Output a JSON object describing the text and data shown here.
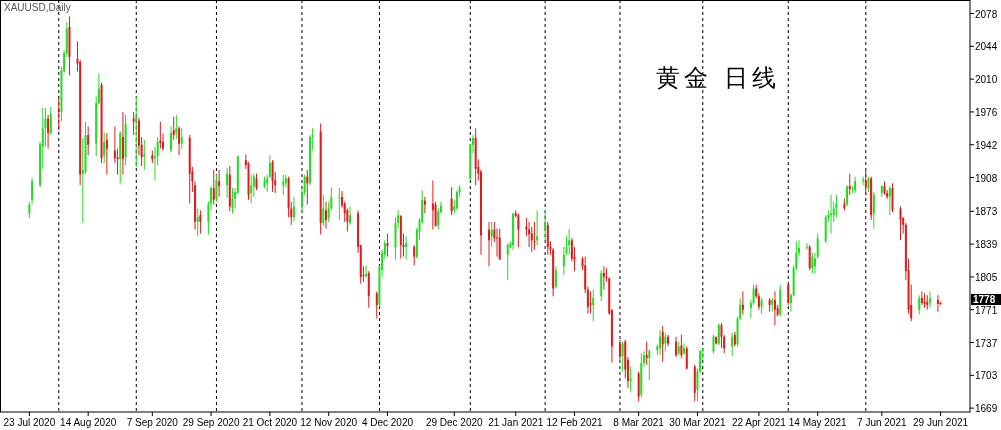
{
  "chart_data": {
    "type": "candlestick",
    "title": "黄金 日线",
    "subtitle": "XAUUSD,Daily",
    "x": [
      "2020-07-23",
      "2020-07-24",
      "2020-07-27",
      "2020-07-28",
      "2020-07-29",
      "2020-07-30",
      "2020-07-31",
      "2020-08-03",
      "2020-08-04",
      "2020-08-05",
      "2020-08-06",
      "2020-08-07",
      "2020-08-10",
      "2020-08-11",
      "2020-08-12",
      "2020-08-13",
      "2020-08-14",
      "2020-08-17",
      "2020-08-18",
      "2020-08-19",
      "2020-08-20",
      "2020-08-21",
      "2020-08-24",
      "2020-08-25",
      "2020-08-26",
      "2020-08-27",
      "2020-08-28",
      "2020-08-31",
      "2020-09-01",
      "2020-09-02",
      "2020-09-03",
      "2020-09-04",
      "2020-09-07",
      "2020-09-08",
      "2020-09-09",
      "2020-09-10",
      "2020-09-11",
      "2020-09-14",
      "2020-09-15",
      "2020-09-16",
      "2020-09-17",
      "2020-09-18",
      "2020-09-21",
      "2020-09-22",
      "2020-09-23",
      "2020-09-24",
      "2020-09-25",
      "2020-09-28",
      "2020-09-29",
      "2020-09-30",
      "2020-10-01",
      "2020-10-02",
      "2020-10-05",
      "2020-10-06",
      "2020-10-07",
      "2020-10-08",
      "2020-10-09",
      "2020-10-12",
      "2020-10-13",
      "2020-10-14",
      "2020-10-15",
      "2020-10-16",
      "2020-10-19",
      "2020-10-20",
      "2020-10-21",
      "2020-10-22",
      "2020-10-23",
      "2020-10-26",
      "2020-10-27",
      "2020-10-28",
      "2020-10-29",
      "2020-10-30",
      "2020-11-02",
      "2020-11-03",
      "2020-11-04",
      "2020-11-05",
      "2020-11-06",
      "2020-11-09",
      "2020-11-10",
      "2020-11-11",
      "2020-11-12",
      "2020-11-13",
      "2020-11-16",
      "2020-11-17",
      "2020-11-18",
      "2020-11-19",
      "2020-11-20",
      "2020-11-23",
      "2020-11-24",
      "2020-11-25",
      "2020-11-26",
      "2020-11-27",
      "2020-11-30",
      "2020-12-01",
      "2020-12-02",
      "2020-12-03",
      "2020-12-04",
      "2020-12-07",
      "2020-12-08",
      "2020-12-09",
      "2020-12-10",
      "2020-12-11",
      "2020-12-14",
      "2020-12-15",
      "2020-12-16",
      "2020-12-17",
      "2020-12-18",
      "2020-12-21",
      "2020-12-22",
      "2020-12-23",
      "2020-12-24",
      "2020-12-28",
      "2020-12-29",
      "2020-12-30",
      "2020-12-31",
      "2021-01-04",
      "2021-01-05",
      "2021-01-06",
      "2021-01-07",
      "2021-01-08",
      "2021-01-11",
      "2021-01-12",
      "2021-01-13",
      "2021-01-14",
      "2021-01-15",
      "2021-01-18",
      "2021-01-19",
      "2021-01-20",
      "2021-01-21",
      "2021-01-22",
      "2021-01-25",
      "2021-01-26",
      "2021-01-27",
      "2021-01-28",
      "2021-01-29",
      "2021-02-01",
      "2021-02-02",
      "2021-02-03",
      "2021-02-04",
      "2021-02-05",
      "2021-02-08",
      "2021-02-09",
      "2021-02-10",
      "2021-02-11",
      "2021-02-12",
      "2021-02-15",
      "2021-02-16",
      "2021-02-17",
      "2021-02-18",
      "2021-02-19",
      "2021-02-22",
      "2021-02-23",
      "2021-02-24",
      "2021-02-25",
      "2021-02-26",
      "2021-03-01",
      "2021-03-02",
      "2021-03-03",
      "2021-03-04",
      "2021-03-05",
      "2021-03-08",
      "2021-03-09",
      "2021-03-10",
      "2021-03-11",
      "2021-03-12",
      "2021-03-15",
      "2021-03-16",
      "2021-03-17",
      "2021-03-18",
      "2021-03-19",
      "2021-03-22",
      "2021-03-23",
      "2021-03-24",
      "2021-03-25",
      "2021-03-26",
      "2021-03-29",
      "2021-03-30",
      "2021-03-31",
      "2021-04-01",
      "2021-04-05",
      "2021-04-06",
      "2021-04-07",
      "2021-04-08",
      "2021-04-09",
      "2021-04-12",
      "2021-04-13",
      "2021-04-14",
      "2021-04-15",
      "2021-04-16",
      "2021-04-19",
      "2021-04-20",
      "2021-04-21",
      "2021-04-22",
      "2021-04-23",
      "2021-04-26",
      "2021-04-27",
      "2021-04-28",
      "2021-04-29",
      "2021-04-30",
      "2021-05-03",
      "2021-05-04",
      "2021-05-05",
      "2021-05-06",
      "2021-05-07",
      "2021-05-10",
      "2021-05-11",
      "2021-05-12",
      "2021-05-13",
      "2021-05-14",
      "2021-05-17",
      "2021-05-18",
      "2021-05-19",
      "2021-05-20",
      "2021-05-21",
      "2021-05-24",
      "2021-05-25",
      "2021-05-26",
      "2021-05-27",
      "2021-05-28",
      "2021-05-31",
      "2021-06-01",
      "2021-06-02",
      "2021-06-03",
      "2021-06-04",
      "2021-06-07",
      "2021-06-08",
      "2021-06-09",
      "2021-06-10",
      "2021-06-11",
      "2021-06-14",
      "2021-06-15",
      "2021-06-16",
      "2021-06-17",
      "2021-06-18",
      "2021-06-21",
      "2021-06-22",
      "2021-06-23",
      "2021-06-24",
      "2021-06-25",
      "2021-06-28",
      "2021-06-29"
    ],
    "ohlc": [
      [
        1871,
        1883,
        1866,
        1880
      ],
      [
        1885,
        1908,
        1880,
        1904
      ],
      [
        1900,
        1945,
        1898,
        1943
      ],
      [
        1940,
        1980,
        1917,
        1959
      ],
      [
        1959,
        1980,
        1940,
        1969
      ],
      [
        1969,
        1973,
        1938,
        1954
      ],
      [
        1954,
        1981,
        1952,
        1974
      ],
      [
        1978,
        1990,
        1957,
        1976
      ],
      [
        1976,
        2023,
        1966,
        2019
      ],
      [
        2018,
        2040,
        2017,
        2037
      ],
      [
        2037,
        2069,
        2033,
        2062
      ],
      [
        2064,
        2075,
        2014,
        2033
      ],
      [
        2031,
        2049,
        2018,
        2026
      ],
      [
        2028,
        2030,
        1900,
        1911
      ],
      [
        1912,
        1949,
        1861,
        1916
      ],
      [
        1914,
        1966,
        1912,
        1952
      ],
      [
        1952,
        1961,
        1931,
        1942
      ],
      [
        1943,
        1992,
        1930,
        1985
      ],
      [
        1985,
        2016,
        1984,
        2000
      ],
      [
        2004,
        2006,
        1923,
        1928
      ],
      [
        1931,
        1955,
        1923,
        1945
      ],
      [
        1947,
        1954,
        1911,
        1938
      ],
      [
        1936,
        1961,
        1923,
        1928
      ],
      [
        1929,
        1938,
        1911,
        1927
      ],
      [
        1927,
        1956,
        1902,
        1954
      ],
      [
        1950,
        1976,
        1911,
        1927
      ],
      [
        1929,
        1973,
        1921,
        1964
      ],
      [
        1969,
        1976,
        1952,
        1966
      ],
      [
        1967,
        1992,
        1919,
        1971
      ],
      [
        1967,
        1970,
        1931,
        1941
      ],
      [
        1942,
        1950,
        1920,
        1929
      ],
      [
        1930,
        1947,
        1916,
        1932
      ],
      [
        1931,
        1936,
        1923,
        1927
      ],
      [
        1928,
        1940,
        1905,
        1930
      ],
      [
        1930,
        1950,
        1921,
        1945
      ],
      [
        1946,
        1966,
        1938,
        1944
      ],
      [
        1945,
        1954,
        1936,
        1938
      ],
      [
        1936,
        1961,
        1934,
        1954
      ],
      [
        1957,
        1971,
        1947,
        1952
      ],
      [
        1954,
        1973,
        1948,
        1959
      ],
      [
        1959,
        1961,
        1931,
        1943
      ],
      [
        1943,
        1959,
        1938,
        1950
      ],
      [
        1949,
        1952,
        1881,
        1912
      ],
      [
        1914,
        1919,
        1893,
        1904
      ],
      [
        1900,
        1904,
        1854,
        1862
      ],
      [
        1862,
        1876,
        1847,
        1867
      ],
      [
        1869,
        1874,
        1850,
        1862
      ],
      [
        1862,
        1883,
        1849,
        1881
      ],
      [
        1881,
        1899,
        1874,
        1897
      ],
      [
        1897,
        1916,
        1880,
        1885
      ],
      [
        1886,
        1911,
        1883,
        1905
      ],
      [
        1904,
        1916,
        1888,
        1899
      ],
      [
        1900,
        1918,
        1887,
        1912
      ],
      [
        1911,
        1920,
        1873,
        1878
      ],
      [
        1876,
        1897,
        1871,
        1886
      ],
      [
        1886,
        1897,
        1876,
        1893
      ],
      [
        1892,
        1931,
        1891,
        1930
      ],
      [
        1926,
        1932,
        1917,
        1921
      ],
      [
        1923,
        1924,
        1885,
        1890
      ],
      [
        1892,
        1911,
        1881,
        1900
      ],
      [
        1899,
        1912,
        1888,
        1909
      ],
      [
        1907,
        1912,
        1895,
        1897
      ],
      [
        1899,
        1909,
        1897,
        1904
      ],
      [
        1902,
        1911,
        1893,
        1907
      ],
      [
        1909,
        1931,
        1907,
        1923
      ],
      [
        1924,
        1926,
        1893,
        1904
      ],
      [
        1905,
        1914,
        1892,
        1900
      ],
      [
        1900,
        1911,
        1890,
        1904
      ],
      [
        1902,
        1911,
        1898,
        1907
      ],
      [
        1907,
        1909,
        1867,
        1876
      ],
      [
        1876,
        1883,
        1859,
        1867
      ],
      [
        1867,
        1888,
        1862,
        1878
      ],
      [
        1878,
        1897,
        1871,
        1893
      ],
      [
        1893,
        1911,
        1890,
        1909
      ],
      [
        1909,
        1916,
        1880,
        1902
      ],
      [
        1902,
        1952,
        1900,
        1950
      ],
      [
        1950,
        1959,
        1936,
        1952
      ],
      [
        1956,
        1964,
        1849,
        1861
      ],
      [
        1861,
        1890,
        1858,
        1876
      ],
      [
        1874,
        1883,
        1855,
        1864
      ],
      [
        1866,
        1883,
        1862,
        1876
      ],
      [
        1876,
        1898,
        1874,
        1888
      ],
      [
        1886,
        1897,
        1864,
        1887
      ],
      [
        1888,
        1894,
        1876,
        1879
      ],
      [
        1881,
        1883,
        1862,
        1871
      ],
      [
        1874,
        1876,
        1852,
        1862
      ],
      [
        1861,
        1878,
        1859,
        1869
      ],
      [
        1871,
        1874,
        1830,
        1836
      ],
      [
        1838,
        1838,
        1798,
        1805
      ],
      [
        1807,
        1816,
        1800,
        1806
      ],
      [
        1806,
        1817,
        1804,
        1808
      ],
      [
        1809,
        1811,
        1773,
        1785
      ],
      [
        1788,
        1790,
        1762,
        1776
      ],
      [
        1776,
        1817,
        1774,
        1816
      ],
      [
        1812,
        1833,
        1805,
        1830
      ],
      [
        1828,
        1843,
        1824,
        1840
      ],
      [
        1840,
        1850,
        1826,
        1837
      ],
      [
        1836,
        1867,
        1823,
        1861
      ],
      [
        1861,
        1874,
        1855,
        1869
      ],
      [
        1868,
        1869,
        1824,
        1838
      ],
      [
        1838,
        1850,
        1826,
        1836
      ],
      [
        1836,
        1847,
        1823,
        1840
      ],
      [
        1836,
        1838,
        1817,
        1826
      ],
      [
        1826,
        1856,
        1824,
        1854
      ],
      [
        1852,
        1866,
        1843,
        1864
      ],
      [
        1862,
        1895,
        1860,
        1885
      ],
      [
        1884,
        1888,
        1871,
        1880
      ],
      [
        1881,
        1905,
        1854,
        1874
      ],
      [
        1880,
        1883,
        1857,
        1858
      ],
      [
        1858,
        1876,
        1854,
        1873
      ],
      [
        1872,
        1883,
        1871,
        1879
      ],
      [
        1886,
        1898,
        1869,
        1873
      ],
      [
        1874,
        1885,
        1871,
        1878
      ],
      [
        1876,
        1895,
        1874,
        1893
      ],
      [
        1893,
        1900,
        1888,
        1897
      ],
      [
        1907,
        1943,
        1905,
        1942
      ],
      [
        1942,
        1952,
        1933,
        1949
      ],
      [
        1949,
        1959,
        1900,
        1917
      ],
      [
        1919,
        1927,
        1905,
        1912
      ],
      [
        1914,
        1916,
        1828,
        1848
      ],
      [
        1854,
        1862,
        1816,
        1843
      ],
      [
        1847,
        1862,
        1836,
        1854
      ],
      [
        1854,
        1862,
        1841,
        1845
      ],
      [
        1846,
        1855,
        1826,
        1845
      ],
      [
        1846,
        1855,
        1823,
        1823
      ],
      [
        1828,
        1840,
        1802,
        1838
      ],
      [
        1836,
        1842,
        1835,
        1840
      ],
      [
        1838,
        1871,
        1833,
        1871
      ],
      [
        1871,
        1874,
        1867,
        1868
      ],
      [
        1869,
        1871,
        1836,
        1854
      ],
      [
        1857,
        1866,
        1847,
        1854
      ],
      [
        1854,
        1862,
        1836,
        1849
      ],
      [
        1850,
        1857,
        1831,
        1843
      ],
      [
        1842,
        1862,
        1833,
        1841
      ],
      [
        1843,
        1874,
        1838,
        1847
      ],
      [
        1854,
        1874,
        1843,
        1859
      ],
      [
        1859,
        1862,
        1828,
        1836
      ],
      [
        1836,
        1842,
        1828,
        1833
      ],
      [
        1833,
        1835,
        1785,
        1793
      ],
      [
        1795,
        1816,
        1793,
        1812
      ],
      [
        1816,
        1836,
        1807,
        1828
      ],
      [
        1830,
        1847,
        1828,
        1836
      ],
      [
        1838,
        1855,
        1828,
        1843
      ],
      [
        1843,
        1845,
        1821,
        1824
      ],
      [
        1826,
        1836,
        1811,
        1823
      ],
      [
        1824,
        1826,
        1812,
        1816
      ],
      [
        1817,
        1826,
        1788,
        1792
      ],
      [
        1792,
        1795,
        1767,
        1774
      ],
      [
        1778,
        1790,
        1767,
        1776
      ],
      [
        1776,
        1792,
        1759,
        1783
      ],
      [
        1785,
        1812,
        1780,
        1809
      ],
      [
        1809,
        1816,
        1792,
        1805
      ],
      [
        1805,
        1814,
        1800,
        1804
      ],
      [
        1804,
        1804,
        1766,
        1767
      ],
      [
        1771,
        1771,
        1716,
        1733
      ],
      [
        1736,
        1740,
        1719,
        1723
      ],
      [
        1723,
        1738,
        1707,
        1736
      ],
      [
        1738,
        1740,
        1700,
        1709
      ],
      [
        1719,
        1722,
        1690,
        1697
      ],
      [
        1697,
        1712,
        1686,
        1700
      ],
      [
        1705,
        1707,
        1676,
        1681
      ],
      [
        1683,
        1726,
        1680,
        1716
      ],
      [
        1716,
        1728,
        1712,
        1724
      ],
      [
        1724,
        1738,
        1714,
        1721
      ],
      [
        1721,
        1730,
        1698,
        1728
      ],
      [
        1729,
        1735,
        1724,
        1733
      ],
      [
        1731,
        1750,
        1724,
        1743
      ],
      [
        1748,
        1754,
        1717,
        1735
      ],
      [
        1736,
        1747,
        1728,
        1743
      ],
      [
        1743,
        1745,
        1733,
        1736
      ],
      [
        1738,
        1743,
        1722,
        1724
      ],
      [
        1726,
        1738,
        1724,
        1733
      ],
      [
        1734,
        1745,
        1721,
        1724
      ],
      [
        1726,
        1736,
        1724,
        1731
      ],
      [
        1731,
        1733,
        1709,
        1710
      ],
      [
        1712,
        1714,
        1676,
        1685
      ],
      [
        1688,
        1710,
        1676,
        1707
      ],
      [
        1707,
        1729,
        1705,
        1728
      ],
      [
        1728,
        1731,
        1719,
        1730
      ],
      [
        1728,
        1745,
        1726,
        1743
      ],
      [
        1743,
        1743,
        1735,
        1736
      ],
      [
        1736,
        1757,
        1734,
        1755
      ],
      [
        1755,
        1757,
        1731,
        1743
      ],
      [
        1743,
        1745,
        1726,
        1731
      ],
      [
        1733,
        1747,
        1723,
        1743
      ],
      [
        1745,
        1748,
        1733,
        1735
      ],
      [
        1735,
        1764,
        1733,
        1762
      ],
      [
        1762,
        1783,
        1760,
        1776
      ],
      [
        1776,
        1790,
        1766,
        1771
      ],
      [
        1773,
        1781,
        1762,
        1778
      ],
      [
        1778,
        1797,
        1776,
        1793
      ],
      [
        1793,
        1797,
        1783,
        1785
      ],
      [
        1785,
        1788,
        1771,
        1774
      ],
      [
        1774,
        1783,
        1767,
        1781
      ],
      [
        1781,
        1783,
        1769,
        1776
      ],
      [
        1776,
        1783,
        1769,
        1781
      ],
      [
        1781,
        1790,
        1755,
        1771
      ],
      [
        1773,
        1776,
        1764,
        1766
      ],
      [
        1766,
        1797,
        1764,
        1792
      ],
      [
        1797,
        1798,
        1776,
        1778
      ],
      [
        1778,
        1788,
        1769,
        1786
      ],
      [
        1786,
        1817,
        1785,
        1814
      ],
      [
        1814,
        1842,
        1812,
        1830
      ],
      [
        1830,
        1843,
        1826,
        1835
      ],
      [
        1835,
        1840,
        1833,
        1836
      ],
      [
        1836,
        1838,
        1812,
        1814
      ],
      [
        1814,
        1830,
        1809,
        1826
      ],
      [
        1816,
        1830,
        1809,
        1824
      ],
      [
        1826,
        1850,
        1824,
        1845
      ],
      [
        1842,
        1869,
        1840,
        1867
      ],
      [
        1866,
        1874,
        1862,
        1869
      ],
      [
        1869,
        1890,
        1850,
        1871
      ],
      [
        1869,
        1883,
        1862,
        1876
      ],
      [
        1876,
        1890,
        1867,
        1881
      ],
      [
        1881,
        1886,
        1874,
        1876
      ],
      [
        1880,
        1900,
        1878,
        1899
      ],
      [
        1899,
        1912,
        1890,
        1896
      ],
      [
        1896,
        1899,
        1892,
        1897
      ],
      [
        1895,
        1909,
        1892,
        1904
      ],
      [
        1904,
        1909,
        1900,
        1906
      ],
      [
        1905,
        1916,
        1890,
        1899
      ],
      [
        1897,
        1909,
        1893,
        1907
      ],
      [
        1907,
        1909,
        1864,
        1869
      ],
      [
        1871,
        1893,
        1855,
        1890
      ],
      [
        1892,
        1900,
        1888,
        1899
      ],
      [
        1899,
        1904,
        1890,
        1892
      ],
      [
        1892,
        1895,
        1886,
        1888
      ],
      [
        1888,
        1899,
        1869,
        1897
      ],
      [
        1897,
        1902,
        1872,
        1874
      ],
      [
        1876,
        1878,
        1843,
        1864
      ],
      [
        1866,
        1867,
        1850,
        1859
      ],
      [
        1859,
        1861,
        1802,
        1811
      ],
      [
        1812,
        1824,
        1767,
        1771
      ],
      [
        1776,
        1797,
        1759,
        1762
      ],
      [
        1771,
        1786,
        1766,
        1783
      ],
      [
        1783,
        1790,
        1776,
        1778
      ],
      [
        1779,
        1788,
        1773,
        1777
      ],
      [
        1779,
        1786,
        1771,
        1776
      ],
      [
        1778,
        1790,
        1773,
        1783
      ],
      [
        1781,
        1786,
        1769,
        1777
      ],
      [
        1778,
        1779,
        1776,
        1778
      ]
    ],
    "colors": [
      "#22dd22",
      "#22dd22",
      "#22dd22",
      "#22dd22",
      "#22dd22",
      "#e01b1b",
      "#22dd22",
      "#e01b1b",
      "#22dd22",
      "#22dd22",
      "#22dd22",
      "#e01b1b",
      "#e01b1b",
      "#e01b1b",
      "#22dd22",
      "#22dd22",
      "#e01b1b",
      "#22dd22",
      "#22dd22",
      "#e01b1b",
      "#22dd22",
      "#e01b1b",
      "#e01b1b",
      "#e01b1b",
      "#22dd22",
      "#e01b1b",
      "#22dd22",
      "#e01b1b",
      "#22dd22",
      "#e01b1b",
      "#e01b1b",
      "#22dd22",
      "#e01b1b",
      "#22dd22",
      "#22dd22",
      "#e01b1b",
      "#e01b1b",
      "#22dd22",
      "#e01b1b",
      "#22dd22",
      "#e01b1b",
      "#22dd22",
      "#e01b1b",
      "#e01b1b",
      "#e01b1b",
      "#22dd22",
      "#e01b1b",
      "#22dd22",
      "#22dd22",
      "#e01b1b",
      "#22dd22",
      "#e01b1b",
      "#22dd22",
      "#e01b1b",
      "#22dd22",
      "#22dd22",
      "#22dd22",
      "#e01b1b",
      "#e01b1b",
      "#22dd22",
      "#22dd22",
      "#e01b1b",
      "#22dd22",
      "#22dd22",
      "#22dd22",
      "#e01b1b",
      "#e01b1b",
      "#22dd22",
      "#22dd22",
      "#e01b1b",
      "#e01b1b",
      "#22dd22",
      "#22dd22",
      "#22dd22",
      "#e01b1b",
      "#22dd22",
      "#22dd22",
      "#e01b1b",
      "#22dd22",
      "#e01b1b",
      "#22dd22",
      "#22dd22",
      "#22dd22",
      "#e01b1b",
      "#e01b1b",
      "#e01b1b",
      "#22dd22",
      "#e01b1b",
      "#e01b1b",
      "#e01b1b",
      "#22dd22",
      "#e01b1b",
      "#e01b1b",
      "#22dd22",
      "#22dd22",
      "#22dd22",
      "#e01b1b",
      "#22dd22",
      "#22dd22",
      "#e01b1b",
      "#e01b1b",
      "#22dd22",
      "#e01b1b",
      "#22dd22",
      "#22dd22",
      "#22dd22",
      "#e01b1b",
      "#e01b1b",
      "#e01b1b",
      "#22dd22",
      "#22dd22",
      "#e01b1b",
      "#22dd22",
      "#22dd22",
      "#22dd22",
      "#22dd22",
      "#22dd22",
      "#e01b1b",
      "#e01b1b",
      "#e01b1b",
      "#e01b1b",
      "#22dd22",
      "#e01b1b",
      "#e01b1b",
      "#e01b1b",
      "#22dd22",
      "#22dd22",
      "#22dd22",
      "#e01b1b",
      "#e01b1b",
      "#e01b1b",
      "#e01b1b",
      "#e01b1b",
      "#e01b1b",
      "#22dd22",
      "#22dd22",
      "#e01b1b",
      "#e01b1b",
      "#e01b1b",
      "#22dd22",
      "#22dd22",
      "#22dd22",
      "#22dd22",
      "#e01b1b",
      "#e01b1b",
      "#e01b1b",
      "#e01b1b",
      "#e01b1b",
      "#e01b1b",
      "#22dd22",
      "#22dd22",
      "#e01b1b",
      "#e01b1b",
      "#e01b1b",
      "#e01b1b",
      "#e01b1b",
      "#22dd22",
      "#e01b1b",
      "#e01b1b",
      "#22dd22",
      "#e01b1b",
      "#22dd22",
      "#22dd22",
      "#e01b1b",
      "#22dd22",
      "#22dd22",
      "#22dd22",
      "#e01b1b",
      "#22dd22",
      "#e01b1b",
      "#e01b1b",
      "#22dd22",
      "#e01b1b",
      "#22dd22",
      "#e01b1b",
      "#e01b1b",
      "#22dd22",
      "#22dd22",
      "#22dd22",
      "#22dd22",
      "#e01b1b",
      "#22dd22",
      "#e01b1b",
      "#e01b1b",
      "#22dd22",
      "#e01b1b",
      "#22dd22",
      "#22dd22",
      "#e01b1b",
      "#22dd22",
      "#22dd22",
      "#e01b1b",
      "#e01b1b",
      "#22dd22",
      "#e01b1b",
      "#22dd22",
      "#e01b1b",
      "#e01b1b",
      "#22dd22",
      "#e01b1b",
      "#22dd22",
      "#22dd22",
      "#22dd22",
      "#22dd22",
      "#22dd22",
      "#e01b1b",
      "#22dd22",
      "#22dd22",
      "#22dd22",
      "#22dd22",
      "#22dd22",
      "#22dd22",
      "#22dd22",
      "#22dd22",
      "#e01b1b",
      "#22dd22",
      "#e01b1b",
      "#22dd22",
      "#22dd22",
      "#22dd22",
      "#e01b1b",
      "#22dd22",
      "#e01b1b",
      "#22dd22",
      "#22dd22",
      "#e01b1b",
      "#e01b1b",
      "#22dd22",
      "#e01b1b",
      "#e01b1b",
      "#e01b1b",
      "#e01b1b",
      "#e01b1b",
      "#e01b1b",
      "#22dd22",
      "#e01b1b",
      "#e01b1b",
      "#e01b1b",
      "#22dd22",
      "#e01b1b",
      "#e01b1b"
    ],
    "ylim": [
      1665,
      2092
    ],
    "yticks": [
      1669,
      1703,
      1737,
      1771,
      1805,
      1839,
      1873,
      1908,
      1942,
      1976,
      2010,
      2044,
      2078
    ],
    "xticks": [
      {
        "value": "2020-07-23",
        "label": "23 Jul 2020"
      },
      {
        "value": "2020-08-14",
        "label": "14 Aug 2020"
      },
      {
        "value": "2020-09-07",
        "label": "7 Sep 2020"
      },
      {
        "value": "2020-09-29",
        "label": "29 Sep 2020"
      },
      {
        "value": "2020-10-21",
        "label": "21 Oct 2020"
      },
      {
        "value": "2020-11-12",
        "label": "12 Nov 2020"
      },
      {
        "value": "2020-12-04",
        "label": "4 Dec 2020"
      },
      {
        "value": "2020-12-29",
        "label": "29 Dec 2020"
      },
      {
        "value": "2021-01-21",
        "label": "21 Jan 2021"
      },
      {
        "value": "2021-02-12",
        "label": "12 Feb 2021"
      },
      {
        "value": "2021-03-08",
        "label": "8 Mar 2021"
      },
      {
        "value": "2021-03-30",
        "label": "30 Mar 2021"
      },
      {
        "value": "2021-04-22",
        "label": "22 Apr 2021"
      },
      {
        "value": "2021-05-14",
        "label": "14 May 2021"
      },
      {
        "value": "2021-06-07",
        "label": "7 Jun 2021"
      },
      {
        "value": "2021-06-29",
        "label": "29 Jun 2021"
      }
    ],
    "ref_lines": [
      {
        "axis": "x",
        "value": "2020-08-03",
        "line_style": "dashed",
        "color": "#000000"
      },
      {
        "axis": "x",
        "value": "2020-09-01",
        "line_style": "dashed",
        "color": "#000000"
      },
      {
        "axis": "x",
        "value": "2020-10-01",
        "line_style": "dashed",
        "color": "#000000"
      },
      {
        "axis": "x",
        "value": "2020-11-02",
        "line_style": "dashed",
        "color": "#000000"
      },
      {
        "axis": "x",
        "value": "2020-12-01",
        "line_style": "dashed",
        "color": "#000000"
      },
      {
        "axis": "x",
        "value": "2021-01-04",
        "line_style": "dashed",
        "color": "#000000"
      },
      {
        "axis": "x",
        "value": "2021-02-01",
        "line_style": "dashed",
        "color": "#000000"
      },
      {
        "axis": "x",
        "value": "2021-03-01",
        "line_style": "dashed",
        "color": "#000000"
      },
      {
        "axis": "x",
        "value": "2021-04-01",
        "line_style": "dashed",
        "color": "#000000"
      },
      {
        "axis": "x",
        "value": "2021-05-03",
        "line_style": "dashed",
        "color": "#000000"
      },
      {
        "axis": "x",
        "value": "2021-06-01",
        "line_style": "dashed",
        "color": "#000000"
      }
    ],
    "xlim": [
      "2020-07-12",
      "2021-07-10"
    ],
    "annotations": [
      "1778"
    ],
    "grid": false
  }
}
